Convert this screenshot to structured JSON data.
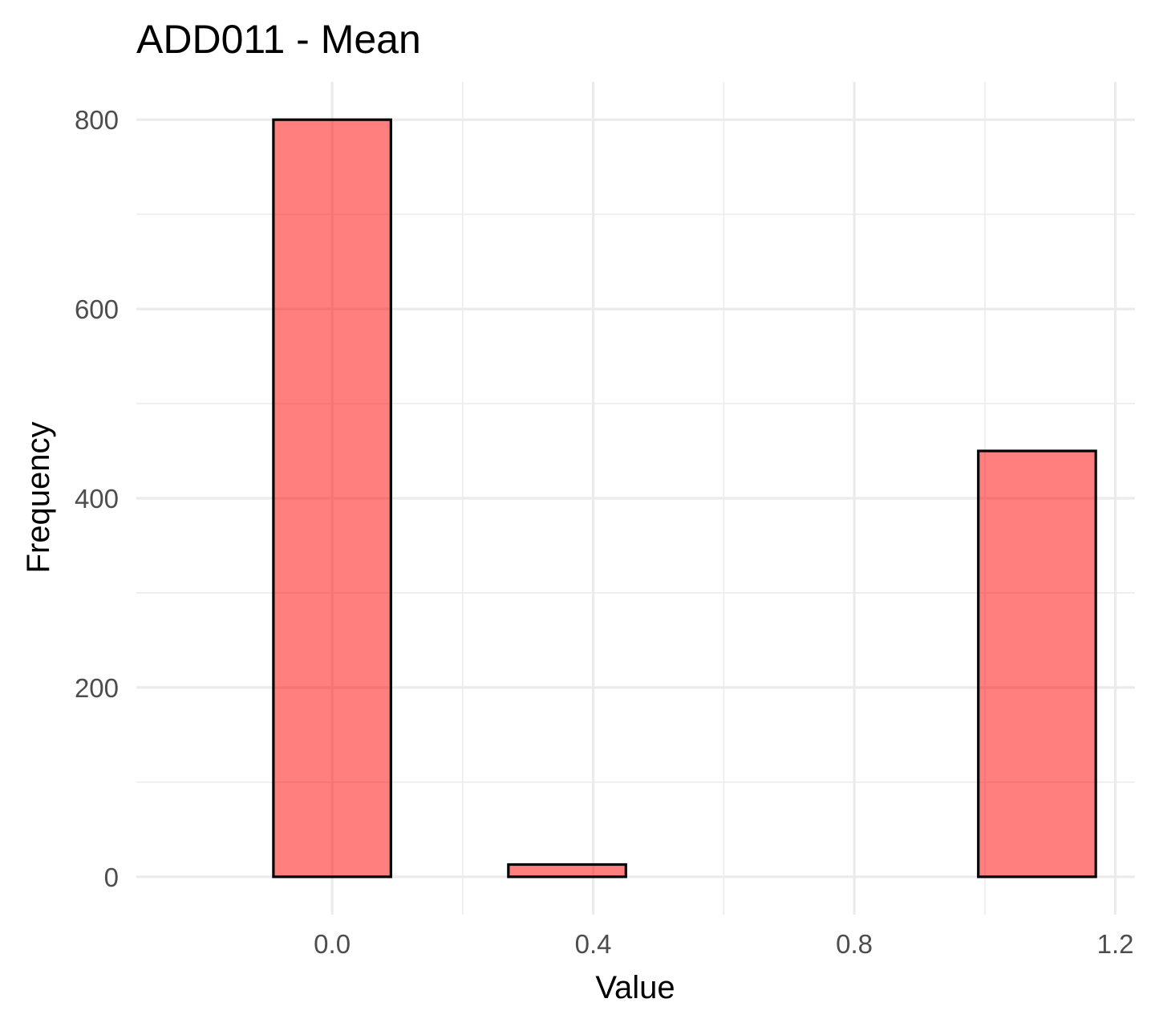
{
  "chart_data": {
    "type": "bar",
    "title": "ADD011 - Mean",
    "xlabel": "Value",
    "ylabel": "Frequency",
    "bin_width": 0.18,
    "bins": [
      {
        "x_start": -0.09,
        "x_end": 0.09,
        "count": 800
      },
      {
        "x_start": 0.09,
        "x_end": 0.27,
        "count": 0
      },
      {
        "x_start": 0.27,
        "x_end": 0.45,
        "count": 13
      },
      {
        "x_start": 0.45,
        "x_end": 0.63,
        "count": 0
      },
      {
        "x_start": 0.63,
        "x_end": 0.81,
        "count": 0
      },
      {
        "x_start": 0.81,
        "x_end": 0.99,
        "count": 0
      },
      {
        "x_start": 0.99,
        "x_end": 1.17,
        "count": 450
      }
    ],
    "xlim": [
      -0.3,
      1.23
    ],
    "ylim": [
      -40,
      840
    ],
    "x_ticks": [
      0.0,
      0.4,
      0.8,
      1.2
    ],
    "x_tick_labels": [
      "0.0",
      "0.4",
      "0.8",
      "1.2"
    ],
    "y_ticks": [
      0,
      200,
      400,
      600,
      800
    ],
    "y_tick_labels": [
      "0",
      "200",
      "400",
      "600",
      "800"
    ],
    "grid": true,
    "bar_fill": "#ff0000",
    "bar_fill_opacity": 0.5,
    "bar_outline": "#000000",
    "grid_color": "#ebebeb"
  }
}
